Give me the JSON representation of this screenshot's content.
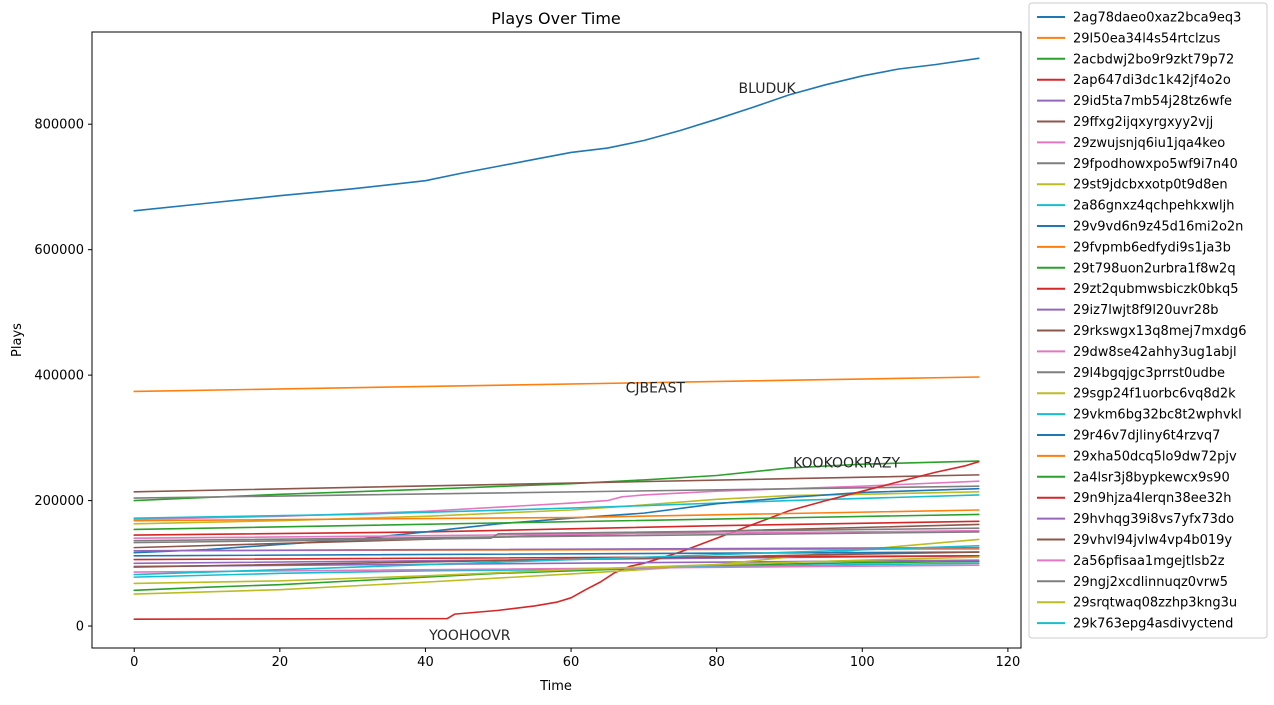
{
  "chart_data": {
    "type": "line",
    "title": "Plays Over Time",
    "xlabel": "Time",
    "ylabel": "Plays",
    "xlim": [
      -5.8,
      121.8
    ],
    "ylim": [
      -35000,
      947000
    ],
    "xticks": [
      0,
      20,
      40,
      60,
      80,
      100,
      120
    ],
    "yticks": [
      0,
      200000,
      400000,
      600000,
      800000
    ],
    "xtick_labels": [
      "0",
      "20",
      "40",
      "60",
      "80",
      "100",
      "120"
    ],
    "ytick_labels": [
      "0",
      "200000",
      "400000",
      "600000",
      "800000"
    ],
    "grid": false,
    "legend_location": "outside right",
    "annotations": [
      {
        "text": "BLUDUK",
        "x": 83,
        "y": 858000
      },
      {
        "text": "CJBEAST",
        "x": 67.5,
        "y": 380000
      },
      {
        "text": "KOOKOOKRAZY",
        "x": 90.5,
        "y": 261000
      },
      {
        "text": "YOOHOOVR",
        "x": 40.5,
        "y": -14000
      }
    ],
    "series": [
      {
        "name": "2ag78daeo0xaz2bca9eq3",
        "color": "#1f77b4",
        "x": [
          0,
          10,
          20,
          30,
          40,
          45,
          50,
          55,
          60,
          65,
          70,
          75,
          80,
          85,
          90,
          95,
          100,
          105,
          110,
          116
        ],
        "y": [
          662000,
          674000,
          686000,
          697000,
          710000,
          722000,
          733000,
          744000,
          755000,
          762000,
          774000,
          790000,
          808000,
          827000,
          847000,
          863000,
          877000,
          888000,
          895000,
          905000
        ]
      },
      {
        "name": "29l50ea34l4s54rtclzus",
        "color": "#ff7f0e",
        "x": [
          0,
          116
        ],
        "y": [
          374000,
          397000
        ]
      },
      {
        "name": "2acbdwj2bo9r9zkt79p72",
        "color": "#2ca02c",
        "x": [
          0,
          20,
          40,
          60,
          70,
          80,
          90,
          100,
          116
        ],
        "y": [
          200000,
          210000,
          218000,
          227000,
          233000,
          240000,
          252000,
          258000,
          263000
        ]
      },
      {
        "name": "2ap647di3dc1k42jf4o2o",
        "color": "#d62728",
        "x": [
          0,
          40,
          60,
          80,
          116
        ],
        "y": [
          145000,
          150000,
          155000,
          160000,
          167000
        ]
      },
      {
        "name": "29id5ta7mb54j28tz6wfe",
        "color": "#9467bd",
        "x": [
          0,
          116
        ],
        "y": [
          100000,
          112000
        ]
      },
      {
        "name": "29ffxg2ijqxyrgxyy2vjj",
        "color": "#8c564b",
        "x": [
          0,
          116
        ],
        "y": [
          214000,
          241000
        ]
      },
      {
        "name": "29zwujsnjq6iu1jqa4keo",
        "color": "#e377c2",
        "x": [
          0,
          20,
          40,
          60,
          65,
          67,
          70,
          80,
          100,
          116
        ],
        "y": [
          170000,
          175000,
          183000,
          196000,
          200000,
          206000,
          209000,
          215000,
          223000,
          231000
        ]
      },
      {
        "name": "29fpodhowxpo5wf9i7n40",
        "color": "#7f7f7f",
        "x": [
          0,
          116
        ],
        "y": [
          204000,
          223000
        ]
      },
      {
        "name": "29st9jdcbxxotp0t9d8en",
        "color": "#bcbd22",
        "x": [
          0,
          20,
          40,
          60,
          70,
          80,
          90,
          100,
          116
        ],
        "y": [
          163000,
          168000,
          175000,
          185000,
          193000,
          202000,
          208000,
          210000,
          214000
        ]
      },
      {
        "name": "2a86gnxz4qchpehkxwljh",
        "color": "#17becf",
        "x": [
          0,
          30,
          60,
          90,
          116
        ],
        "y": [
          172000,
          178000,
          188000,
          200000,
          209000
        ]
      },
      {
        "name": "29v9vd6n9z45d16mi2o2n",
        "color": "#1f77b4",
        "x": [
          0,
          10,
          20,
          30,
          40,
          50,
          60,
          70,
          80,
          90,
          100,
          116
        ],
        "y": [
          117000,
          122000,
          130000,
          138000,
          150000,
          163000,
          172000,
          180000,
          195000,
          205000,
          213000,
          219000
        ]
      },
      {
        "name": "29fvpmb6edfydi9s1ja3b",
        "color": "#ff7f0e",
        "x": [
          0,
          116
        ],
        "y": [
          120000,
          123000
        ]
      },
      {
        "name": "29t798uon2urbra1f8w2q",
        "color": "#2ca02c",
        "x": [
          0,
          10,
          20,
          30,
          40,
          50,
          60,
          70,
          80,
          90,
          100,
          116
        ],
        "y": [
          57000,
          62000,
          66000,
          72000,
          78000,
          84000,
          88000,
          92000,
          96000,
          99000,
          101000,
          103000
        ]
      },
      {
        "name": "29zt2qubmwsbiczk0bkq5",
        "color": "#d62728",
        "x": [
          0,
          43,
          44,
          50,
          55,
          58,
          60,
          62,
          64,
          66,
          68,
          70,
          75,
          80,
          85,
          90,
          95,
          100,
          105,
          110,
          114,
          116
        ],
        "y": [
          11000,
          12000,
          19000,
          25000,
          32000,
          38000,
          45000,
          58000,
          70000,
          85000,
          95000,
          100000,
          118000,
          140000,
          162000,
          184000,
          200000,
          215000,
          230000,
          245000,
          255000,
          262000
        ]
      },
      {
        "name": "29iz7lwjt8f9l20uvr28b",
        "color": "#9467bd",
        "x": [
          0,
          116
        ],
        "y": [
          95000,
          105000
        ]
      },
      {
        "name": "29rkswgx13q8mej7mxdg6",
        "color": "#8c564b",
        "x": [
          0,
          60,
          116
        ],
        "y": [
          125000,
          145000,
          162000
        ]
      },
      {
        "name": "29dw8se42ahhy3ug1abjl",
        "color": "#e377c2",
        "x": [
          0,
          116
        ],
        "y": [
          140000,
          152000
        ]
      },
      {
        "name": "29l4bgqjgc3prrst0udbe",
        "color": "#7f7f7f",
        "x": [
          0,
          49,
          50,
          116
        ],
        "y": [
          133000,
          140000,
          147000,
          156000
        ]
      },
      {
        "name": "29sgp24f1uorbc6vq8d2k",
        "color": "#bcbd22",
        "x": [
          0,
          20,
          40,
          60,
          70,
          80,
          90,
          100,
          116
        ],
        "y": [
          51000,
          58000,
          70000,
          83000,
          90000,
          98000,
          110000,
          122000,
          138000
        ]
      },
      {
        "name": "29vkm6bg32bc8t2wphvkl",
        "color": "#17becf",
        "x": [
          0,
          20,
          40,
          60,
          80,
          100,
          116
        ],
        "y": [
          78000,
          84000,
          88000,
          90000,
          95000,
          98000,
          100000
        ]
      },
      {
        "name": "29r46v7djliny6t4rzvq7",
        "color": "#1f77b4",
        "x": [
          0,
          116
        ],
        "y": [
          112000,
          118000
        ]
      },
      {
        "name": "29xha50dcq5lo9dw72pjv",
        "color": "#ff7f0e",
        "x": [
          0,
          60,
          116
        ],
        "y": [
          168000,
          173000,
          185000
        ]
      },
      {
        "name": "2a4lsr3j8bypkewcx9s90",
        "color": "#2ca02c",
        "x": [
          0,
          116
        ],
        "y": [
          154000,
          178000
        ]
      },
      {
        "name": "29n9hjza4lerqn38ee32h",
        "color": "#d62728",
        "x": [
          0,
          116
        ],
        "y": [
          106000,
          112000
        ]
      },
      {
        "name": "29hvhqg39i8vs7yfx73do",
        "color": "#9467bd",
        "x": [
          0,
          116
        ],
        "y": [
          120000,
          125000
        ]
      },
      {
        "name": "29vhvl94jvlw4vp4b019y",
        "color": "#8c564b",
        "x": [
          0,
          116
        ],
        "y": [
          94000,
          118000
        ]
      },
      {
        "name": "2a56pfisaa1mgejtlsb2z",
        "color": "#e377c2",
        "x": [
          0,
          116
        ],
        "y": [
          86000,
          97000
        ]
      },
      {
        "name": "29ngj2xcdlinnuqz0vrw5",
        "color": "#7f7f7f",
        "x": [
          0,
          116
        ],
        "y": [
          136000,
          150000
        ]
      },
      {
        "name": "29srqtwaq08zzhp3kng3u",
        "color": "#bcbd22",
        "x": [
          0,
          20,
          40,
          60,
          80,
          100,
          116
        ],
        "y": [
          68000,
          72000,
          80000,
          90000,
          98000,
          105000,
          110000
        ]
      },
      {
        "name": "29k763epg4asdivyctend",
        "color": "#17becf",
        "x": [
          0,
          116
        ],
        "y": [
          82000,
          128000
        ]
      }
    ]
  }
}
